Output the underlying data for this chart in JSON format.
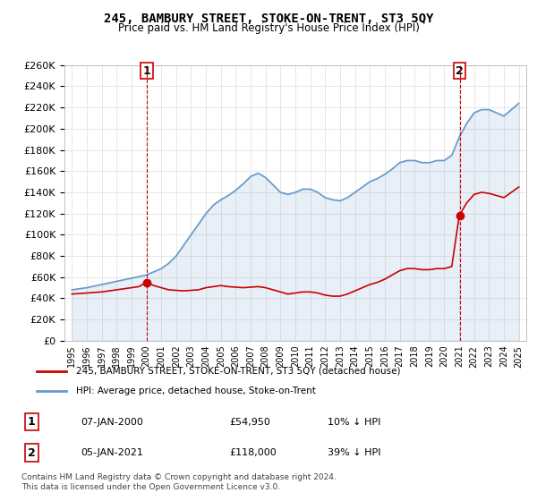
{
  "title": "245, BAMBURY STREET, STOKE-ON-TRENT, ST3 5QY",
  "subtitle": "Price paid vs. HM Land Registry's House Price Index (HPI)",
  "legend_label_red": "245, BAMBURY STREET, STOKE-ON-TRENT, ST3 5QY (detached house)",
  "legend_label_blue": "HPI: Average price, detached house, Stoke-on-Trent",
  "footer1": "Contains HM Land Registry data © Crown copyright and database right 2024.",
  "footer2": "This data is licensed under the Open Government Licence v3.0.",
  "point1_label": "1",
  "point1_date": "07-JAN-2000",
  "point1_price": "£54,950",
  "point1_hpi": "10% ↓ HPI",
  "point2_label": "2",
  "point2_date": "05-JAN-2021",
  "point2_price": "£118,000",
  "point2_hpi": "39% ↓ HPI",
  "sale1_x": 2000.03,
  "sale1_y": 54950,
  "sale2_x": 2021.03,
  "sale2_y": 118000,
  "ylim": [
    0,
    260000
  ],
  "xlim": [
    1994.5,
    2025.5
  ],
  "background_color": "#ffffff",
  "grid_color": "#dddddd",
  "red_color": "#cc0000",
  "blue_color": "#6699cc",
  "hpi_years": [
    1995,
    1995.5,
    1996,
    1996.5,
    1997,
    1997.5,
    1998,
    1998.5,
    1999,
    1999.5,
    2000,
    2000.5,
    2001,
    2001.5,
    2002,
    2002.5,
    2003,
    2003.5,
    2004,
    2004.5,
    2005,
    2005.5,
    2006,
    2006.5,
    2007,
    2007.5,
    2008,
    2008.5,
    2009,
    2009.5,
    2010,
    2010.5,
    2011,
    2011.5,
    2012,
    2012.5,
    2013,
    2013.5,
    2014,
    2014.5,
    2015,
    2015.5,
    2016,
    2016.5,
    2017,
    2017.5,
    2018,
    2018.5,
    2019,
    2019.5,
    2020,
    2020.5,
    2021,
    2021.5,
    2022,
    2022.5,
    2023,
    2023.5,
    2024,
    2024.5,
    2025
  ],
  "hpi_values": [
    48000,
    49000,
    50000,
    51500,
    53000,
    54500,
    56000,
    57500,
    59000,
    60500,
    62000,
    65000,
    68000,
    73000,
    80000,
    90000,
    100000,
    110000,
    120000,
    128000,
    133000,
    137000,
    142000,
    148000,
    155000,
    158000,
    154000,
    147000,
    140000,
    138000,
    140000,
    143000,
    143000,
    140000,
    135000,
    133000,
    132000,
    135000,
    140000,
    145000,
    150000,
    153000,
    157000,
    162000,
    168000,
    170000,
    170000,
    168000,
    168000,
    170000,
    170000,
    175000,
    192000,
    205000,
    215000,
    218000,
    218000,
    215000,
    212000,
    218000,
    224000
  ],
  "red_years": [
    1995,
    1995.5,
    1996,
    1996.5,
    1997,
    1997.5,
    1998,
    1998.5,
    1999,
    1999.5,
    2000,
    2000.5,
    2001,
    2001.5,
    2002,
    2002.5,
    2003,
    2003.5,
    2004,
    2004.5,
    2005,
    2005.5,
    2006,
    2006.5,
    2007,
    2007.5,
    2008,
    2008.5,
    2009,
    2009.5,
    2010,
    2010.5,
    2011,
    2011.5,
    2012,
    2012.5,
    2013,
    2013.5,
    2014,
    2014.5,
    2015,
    2015.5,
    2016,
    2016.5,
    2017,
    2017.5,
    2018,
    2018.5,
    2019,
    2019.5,
    2020,
    2020.5,
    2021,
    2021.5,
    2022,
    2022.5,
    2023,
    2023.5,
    2024,
    2024.5,
    2025
  ],
  "red_values": [
    44000,
    44500,
    45000,
    45500,
    46000,
    47000,
    48000,
    49000,
    50000,
    51000,
    54950,
    52000,
    50000,
    48000,
    47500,
    47000,
    47500,
    48000,
    50000,
    51000,
    52000,
    51000,
    50500,
    50000,
    50500,
    51000,
    50000,
    48000,
    46000,
    44000,
    45000,
    46000,
    46000,
    45000,
    43000,
    42000,
    42000,
    44000,
    47000,
    50000,
    53000,
    55000,
    58000,
    62000,
    66000,
    68000,
    68000,
    67000,
    67000,
    68000,
    68000,
    70000,
    118000,
    130000,
    138000,
    140000,
    139000,
    137000,
    135000,
    140000,
    145000
  ]
}
